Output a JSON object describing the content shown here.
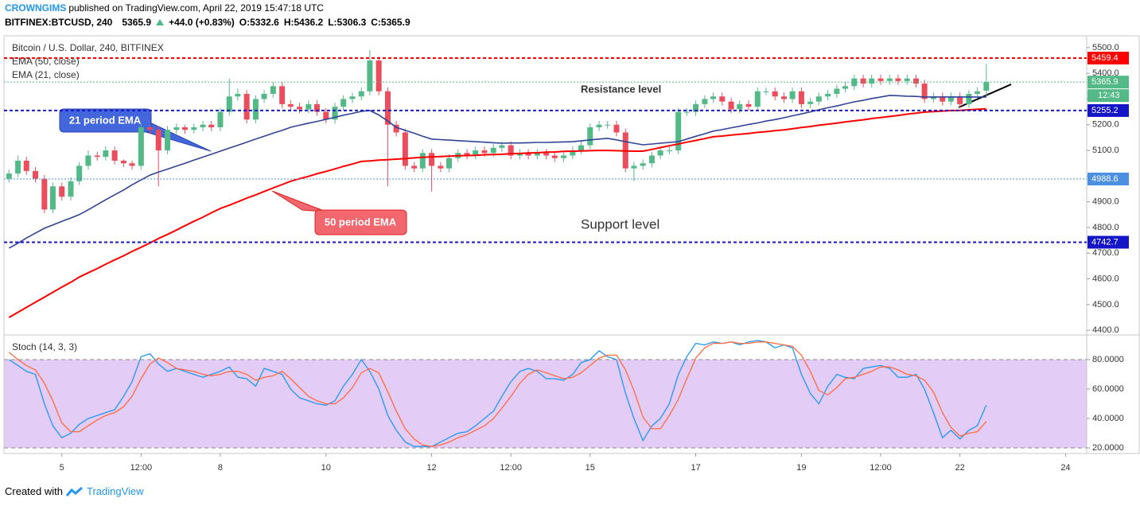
{
  "header": {
    "author": "CROWNGIMS",
    "published": "published on TradingView.com, April 22, 2019 15:47:18 UTC",
    "symbol": "BITFINEX:BTCUSD, 240",
    "last": 5365.9,
    "change": "+44.0 (+0.83%)",
    "open": "O:5332.6",
    "high": "H:5436.2",
    "low": "L:5306.3",
    "close": "C:5365.9"
  },
  "footer": {
    "created": "Created with",
    "brand": "TradingView"
  },
  "chart_data": [
    {
      "type": "candlestick",
      "title": "Bitcoin / U.S. Dollar, 240, BITFINEX",
      "up_color": "#53b987",
      "down_color": "#eb4d5c",
      "x": [
        4,
        4.17,
        4.33,
        4.5,
        4.67,
        4.83,
        5,
        5.17,
        5.33,
        5.5,
        5.67,
        5.83,
        6,
        6.17,
        6.33,
        6.5,
        6.67,
        6.83,
        7,
        7.17,
        7.33,
        7.5,
        7.67,
        7.83,
        8,
        8.17,
        8.33,
        8.5,
        8.67,
        8.83,
        9,
        9.17,
        9.33,
        9.5,
        9.67,
        9.83,
        10,
        10.17,
        10.33,
        10.5,
        10.67,
        10.83,
        11,
        11.17,
        11.33,
        11.5,
        11.67,
        11.83,
        12,
        12.17,
        12.33,
        12.5,
        12.67,
        12.83,
        13,
        13.17,
        13.33,
        13.5,
        13.67,
        13.83,
        14,
        14.17,
        14.33,
        14.5,
        14.67,
        14.83,
        15,
        15.17,
        15.33,
        15.5,
        15.67,
        15.83,
        16,
        16.17,
        16.33,
        16.5,
        16.67,
        16.83,
        17,
        17.17,
        17.33,
        17.5,
        17.67,
        17.83,
        18,
        18.17,
        18.33,
        18.5,
        18.67,
        18.83,
        19,
        19.17,
        19.33,
        19.5,
        19.67,
        19.83,
        20,
        20.17,
        20.33,
        20.5,
        20.67,
        20.83,
        21,
        21.17,
        21.33,
        21.5,
        21.67,
        21.83,
        22,
        22.17,
        22.33,
        22.5
      ],
      "open": [
        4990,
        5010,
        5060,
        5020,
        4990,
        4870,
        4960,
        4920,
        4980,
        5040,
        5080,
        5075,
        5100,
        5060,
        5050,
        5040,
        5190,
        5180,
        5100,
        5180,
        5190,
        5180,
        5190,
        5200,
        5190,
        5250,
        5310,
        5320,
        5220,
        5300,
        5320,
        5350,
        5280,
        5270,
        5260,
        5280,
        5250,
        5220,
        5270,
        5300,
        5310,
        5330,
        5450,
        5330,
        5200,
        5170,
        5040,
        5030,
        5090,
        5040,
        5030,
        5070,
        5090,
        5080,
        5100,
        5090,
        5110,
        5120,
        5080,
        5090,
        5080,
        5090,
        5080,
        5070,
        5080,
        5100,
        5120,
        5190,
        5200,
        5200,
        5170,
        5030,
        5040,
        5050,
        5080,
        5100,
        5100,
        5250,
        5250,
        5280,
        5300,
        5310,
        5290,
        5260,
        5280,
        5270,
        5330,
        5330,
        5310,
        5300,
        5330,
        5280,
        5290,
        5310,
        5320,
        5340,
        5350,
        5380,
        5360,
        5380,
        5370,
        5380,
        5370,
        5380,
        5360,
        5300,
        5310,
        5290,
        5310,
        5280,
        5320,
        5332.6
      ],
      "high": [
        5025,
        5080,
        5075,
        5035,
        5005,
        4975,
        4975,
        4995,
        5055,
        5100,
        5095,
        5115,
        5115,
        5065,
        5060,
        5205,
        5200,
        5195,
        5195,
        5205,
        5200,
        5205,
        5215,
        5215,
        5265,
        5380,
        5340,
        5335,
        5315,
        5335,
        5365,
        5365,
        5295,
        5285,
        5295,
        5295,
        5265,
        5285,
        5315,
        5325,
        5345,
        5490,
        5465,
        5345,
        5215,
        5185,
        5055,
        5105,
        5105,
        5055,
        5085,
        5105,
        5105,
        5115,
        5115,
        5125,
        5135,
        5135,
        5105,
        5105,
        5105,
        5105,
        5095,
        5095,
        5115,
        5135,
        5205,
        5215,
        5215,
        5215,
        5185,
        5055,
        5065,
        5095,
        5115,
        5115,
        5265,
        5265,
        5295,
        5315,
        5325,
        5325,
        5305,
        5295,
        5295,
        5345,
        5345,
        5345,
        5325,
        5345,
        5345,
        5305,
        5325,
        5335,
        5355,
        5365,
        5395,
        5395,
        5395,
        5395,
        5395,
        5395,
        5395,
        5395,
        5375,
        5325,
        5325,
        5325,
        5325,
        5335,
        5345,
        5436.2
      ],
      "low": [
        4975,
        4995,
        5005,
        4975,
        4855,
        4855,
        4905,
        4905,
        4965,
        5025,
        5060,
        5060,
        5045,
        5035,
        5025,
        5025,
        5165,
        4960,
        5085,
        5165,
        5165,
        5165,
        5175,
        5175,
        5175,
        5235,
        5295,
        5205,
        5205,
        5285,
        5305,
        5265,
        5255,
        5245,
        5245,
        5235,
        5205,
        5205,
        5255,
        5285,
        5295,
        5315,
        5315,
        4960,
        5155,
        5025,
        5015,
        5015,
        4940,
        5015,
        5015,
        5055,
        5065,
        5065,
        5075,
        5075,
        5095,
        5065,
        5065,
        5065,
        5065,
        5065,
        5055,
        5055,
        5065,
        5085,
        5105,
        5175,
        5185,
        5155,
        5015,
        4980,
        5025,
        5035,
        5065,
        5085,
        5085,
        5235,
        5235,
        5265,
        5285,
        5275,
        5245,
        5245,
        5255,
        5255,
        5315,
        5295,
        5285,
        5285,
        5265,
        5265,
        5275,
        5295,
        5305,
        5325,
        5335,
        5345,
        5345,
        5355,
        5355,
        5355,
        5355,
        5345,
        5285,
        5285,
        5275,
        5275,
        5265,
        5265,
        5305,
        5306.3
      ],
      "close": [
        5010,
        5060,
        5020,
        4990,
        4870,
        4960,
        4920,
        4980,
        5040,
        5080,
        5075,
        5100,
        5060,
        5050,
        5040,
        5190,
        5180,
        5100,
        5180,
        5190,
        5180,
        5190,
        5200,
        5190,
        5250,
        5310,
        5320,
        5220,
        5300,
        5320,
        5350,
        5280,
        5270,
        5260,
        5280,
        5250,
        5220,
        5270,
        5300,
        5310,
        5330,
        5450,
        5330,
        5200,
        5170,
        5040,
        5030,
        5090,
        5040,
        5030,
        5070,
        5090,
        5080,
        5100,
        5090,
        5110,
        5120,
        5080,
        5090,
        5080,
        5090,
        5080,
        5070,
        5080,
        5100,
        5120,
        5190,
        5200,
        5200,
        5170,
        5030,
        5040,
        5050,
        5080,
        5100,
        5100,
        5250,
        5250,
        5280,
        5300,
        5310,
        5290,
        5260,
        5280,
        5270,
        5330,
        5330,
        5310,
        5300,
        5330,
        5280,
        5290,
        5310,
        5320,
        5340,
        5350,
        5380,
        5360,
        5380,
        5370,
        5380,
        5370,
        5380,
        5360,
        5300,
        5310,
        5290,
        5310,
        5280,
        5320,
        5330,
        5365.9
      ],
      "series": [
        {
          "name": "EMA (50, close)",
          "color": "#ff0000",
          "values": [
            4450,
            4470,
            4489,
            4509,
            4529,
            4548,
            4568,
            4587,
            4607,
            4624,
            4640,
            4657,
            4674,
            4690,
            4707,
            4723,
            4740,
            4757,
            4773,
            4790,
            4807,
            4824,
            4840,
            4857,
            4874,
            4887,
            4900,
            4914,
            4927,
            4940,
            4954,
            4967,
            4980,
            4990,
            4999,
            5009,
            5018,
            5028,
            5038,
            5047,
            5057,
            5059,
            5062,
            5064,
            5066,
            5068,
            5071,
            5073,
            5075,
            5076,
            5078,
            5079,
            5080,
            5081,
            5083,
            5084,
            5085,
            5087,
            5088,
            5090,
            5091,
            5093,
            5094,
            5096,
            5097,
            5098,
            5099,
            5100,
            5100,
            5099,
            5098,
            5097,
            5097,
            5104,
            5111,
            5118,
            5125,
            5132,
            5139,
            5146,
            5153,
            5156,
            5160,
            5163,
            5166,
            5170,
            5173,
            5177,
            5180,
            5184,
            5189,
            5193,
            5198,
            5202,
            5206,
            5211,
            5215,
            5219,
            5224,
            5228,
            5232,
            5236,
            5241,
            5245,
            5249,
            5251,
            5253,
            5255,
            5256,
            5258,
            5260,
            5262
          ]
        },
        {
          "name": "EMA (21, close)",
          "color": "#2f4496",
          "values": [
            4720,
            4739,
            4759,
            4778,
            4797,
            4810,
            4824,
            4837,
            4850,
            4869,
            4889,
            4908,
            4927,
            4946,
            4966,
            4985,
            5004,
            5016,
            5027,
            5039,
            5050,
            5062,
            5074,
            5085,
            5097,
            5109,
            5120,
            5132,
            5144,
            5155,
            5167,
            5178,
            5190,
            5198,
            5206,
            5213,
            5221,
            5229,
            5237,
            5244,
            5252,
            5255,
            5238,
            5214,
            5190,
            5178,
            5167,
            5155,
            5144,
            5142,
            5140,
            5138,
            5136,
            5134,
            5132,
            5130,
            5128,
            5129,
            5129,
            5130,
            5131,
            5131,
            5132,
            5133,
            5134,
            5137,
            5141,
            5144,
            5147,
            5141,
            5134,
            5128,
            5122,
            5125,
            5128,
            5131,
            5134,
            5144,
            5155,
            5165,
            5175,
            5181,
            5188,
            5194,
            5201,
            5207,
            5214,
            5220,
            5227,
            5235,
            5242,
            5250,
            5258,
            5266,
            5273,
            5281,
            5289,
            5295,
            5302,
            5308,
            5314,
            5313,
            5311,
            5310,
            5308,
            5308,
            5308,
            5308,
            5308,
            5308,
            5308,
            5308
          ]
        }
      ],
      "levels": [
        {
          "value": 5459.4,
          "color": "#ff0000",
          "line_width": 2
        },
        {
          "value": 5365.9,
          "color": "#53b987",
          "line_width": 1,
          "countdown": "12:43"
        },
        {
          "value": 5255.2,
          "color": "#1515c8",
          "line_width": 2
        },
        {
          "value": 4988.6,
          "color": "#4a8fe0",
          "line_width": 1
        },
        {
          "value": 4742.7,
          "color": "#1515c8",
          "line_width": 2
        }
      ],
      "annotations": [
        {
          "text": "Resistance level",
          "color": "#e00000"
        },
        {
          "text": "Support level",
          "color": "#1a1ad0"
        },
        {
          "text": "21 period EMA",
          "color": "#4466dd"
        },
        {
          "text": "50 period EMA",
          "color": "#f2666e"
        }
      ],
      "ylim": [
        4385,
        5546
      ],
      "yticks": [
        {
          "value": 4400,
          "label": "4400.0"
        },
        {
          "value": 4500,
          "label": "4500.0"
        },
        {
          "value": 4600,
          "label": "4600.0"
        },
        {
          "value": 4700,
          "label": "4700.0"
        },
        {
          "value": 4800,
          "label": "4800.0"
        },
        {
          "value": 4900,
          "label": "4900.0"
        },
        {
          "value": 5000,
          "label": "5000.0"
        },
        {
          "value": 5100,
          "label": "5100.0"
        },
        {
          "value": 5200,
          "label": "5200.0"
        },
        {
          "value": 5300,
          "label": "5300.0"
        },
        {
          "value": 5400,
          "label": "5400.0"
        },
        {
          "value": 5500,
          "label": "5500.0"
        }
      ],
      "xlim": [
        3.95,
        24.4
      ],
      "xticks": [
        5,
        {
          "value": 6.5,
          "label": "12:00"
        },
        8,
        10,
        12,
        {
          "value": 13.5,
          "label": "12:00"
        },
        15,
        17,
        19,
        {
          "value": 20.5,
          "label": "12:00"
        },
        22,
        24
      ]
    },
    {
      "type": "line",
      "title": "Stoch (14, 3, 3)",
      "series": [
        {
          "color": "#2196f3",
          "values": [
            80,
            76,
            72,
            70,
            50,
            35,
            27,
            30,
            36,
            40,
            42,
            44,
            46,
            55,
            65,
            82,
            84,
            77,
            72,
            74,
            72,
            70,
            68,
            70,
            72,
            75,
            68,
            67,
            62,
            74,
            72,
            70,
            60,
            54,
            52,
            50,
            49,
            52,
            62,
            70,
            80,
            72,
            60,
            42,
            32,
            24,
            21,
            21,
            21,
            24,
            27,
            30,
            31,
            35,
            40,
            45,
            55,
            65,
            72,
            74,
            72,
            67,
            67,
            66,
            70,
            78,
            80,
            86,
            82,
            80,
            57,
            40,
            25,
            35,
            40,
            50,
            70,
            82,
            91,
            90,
            92,
            91,
            92,
            90,
            92,
            93,
            92,
            88,
            90,
            88,
            70,
            57,
            50,
            62,
            70,
            68,
            67,
            74,
            75,
            76,
            74,
            68,
            68,
            70,
            60,
            44,
            27,
            32,
            26,
            32,
            35,
            49
          ]
        },
        {
          "color": "#ff6a3d",
          "values": [
            85,
            80,
            76,
            73,
            64,
            52,
            37,
            31,
            31,
            35,
            39,
            42,
            44,
            48,
            55,
            67,
            77,
            81,
            78,
            74,
            73,
            72,
            70,
            69,
            70,
            72,
            72,
            70,
            66,
            68,
            69,
            72,
            67,
            61,
            55,
            52,
            50,
            50,
            54,
            61,
            71,
            74,
            71,
            58,
            45,
            33,
            26,
            22,
            21,
            22,
            24,
            27,
            29,
            32,
            35,
            40,
            47,
            55,
            64,
            70,
            73,
            71,
            69,
            67,
            68,
            71,
            76,
            81,
            83,
            83,
            73,
            59,
            41,
            33,
            33,
            42,
            53,
            67,
            81,
            88,
            91,
            91,
            92,
            91,
            91,
            92,
            92,
            91,
            90,
            89,
            83,
            72,
            59,
            56,
            61,
            67,
            68,
            70,
            72,
            75,
            75,
            73,
            70,
            69,
            66,
            58,
            44,
            34,
            28,
            30,
            31,
            38
          ]
        }
      ],
      "band": [
        20,
        80
      ],
      "band_color": "#e3cdf6",
      "ylim": [
        17.3,
        96.2
      ],
      "yticks": [
        {
          "value": 20,
          "label": "20.0000"
        },
        {
          "value": 40,
          "label": "40.0000"
        },
        {
          "value": 60,
          "label": "60.0000"
        },
        {
          "value": 80,
          "label": "80.0000"
        }
      ]
    }
  ]
}
